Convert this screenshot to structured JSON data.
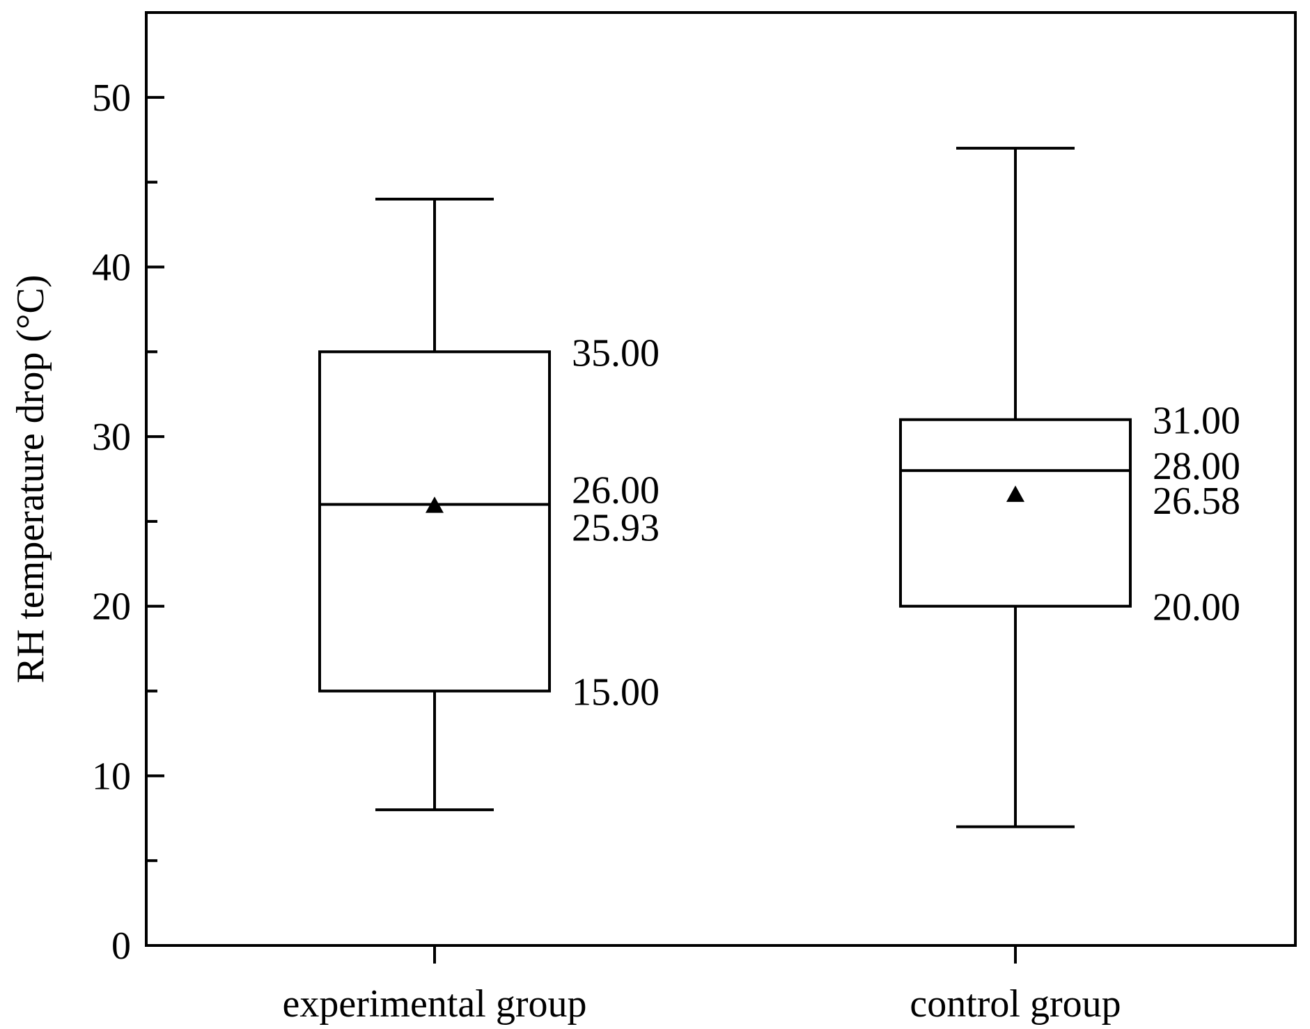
{
  "chart_data": {
    "type": "box",
    "ylabel": "RH temperature drop (°C)",
    "xlabel": "",
    "ylim": [
      0,
      55
    ],
    "yticks": [
      0,
      10,
      20,
      30,
      40,
      50
    ],
    "grid": false,
    "categories": [
      "experimental group",
      "control group"
    ],
    "boxes": [
      {
        "category": "experimental group",
        "whisker_low": 8,
        "q1": 15,
        "median": 26,
        "q3": 35,
        "whisker_high": 44,
        "mean": 25.93,
        "labels": {
          "q3": "35.00",
          "median": "26.00",
          "mean": "25.93",
          "q1": "15.00"
        }
      },
      {
        "category": "control group",
        "whisker_low": 7,
        "q1": 20,
        "median": 28,
        "q3": 31,
        "whisker_high": 47,
        "mean": 26.58,
        "labels": {
          "q3": "31.00",
          "median": "28.00",
          "mean": "26.58",
          "q1": "20.00"
        }
      }
    ],
    "colors": {
      "stroke": "#000000",
      "background": "#ffffff"
    }
  }
}
